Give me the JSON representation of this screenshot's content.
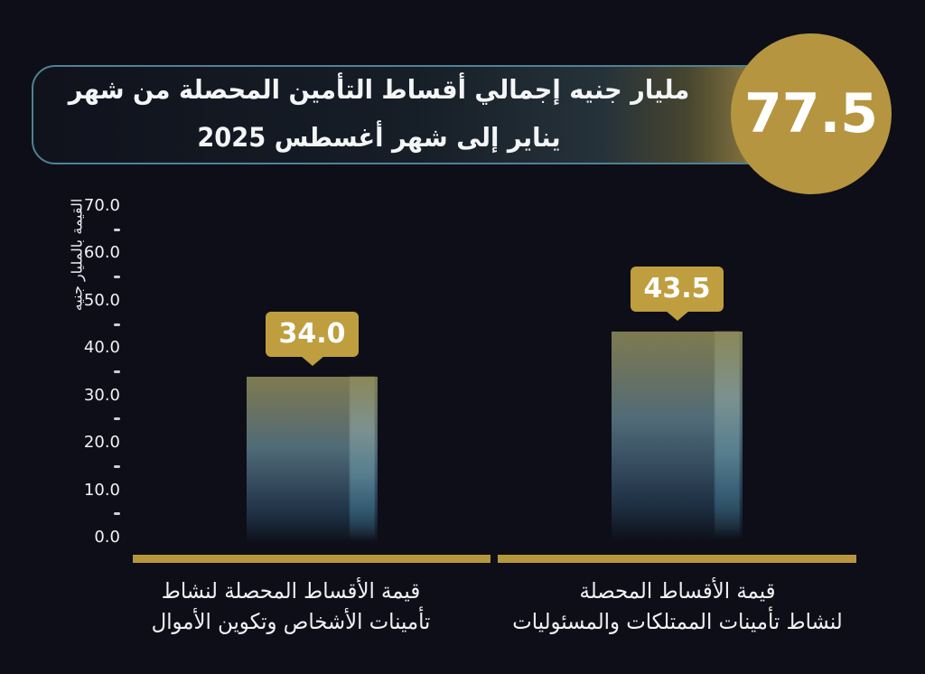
{
  "header": {
    "title_line1": "مليار جنيه إجمالي أقساط التأمين المحصلة من شهر",
    "title_line2": "يناير إلى شهر أغسطس 2025",
    "total_value": "77.5"
  },
  "colors": {
    "background": "#0d0e17",
    "gold": "#b6973e",
    "tag_gold": "#bf9e3f",
    "circle_gold": "#b5953f",
    "text": "#f2f3f5",
    "bar_top": "#7e7b51",
    "bar_mid": "#506b78",
    "bar_low": "#1c2d40",
    "strip_top": "#8b8858",
    "strip_mid": "#567e8e",
    "strip_low": "#335a70"
  },
  "chart_data": {
    "type": "bar",
    "title": "مليار جنيه إجمالي أقساط التأمين المحصلة من شهر يناير إلى شهر أغسطس 2025",
    "total": 77.5,
    "ylabel": "القيمة بالمليار جنيه",
    "ylim": [
      0,
      70
    ],
    "ytick_step": 10,
    "yticks": [
      "70.0",
      "60.0",
      "50.0",
      "40.0",
      "30.0",
      "20.0",
      "10.0",
      "0.0"
    ],
    "grid": false,
    "legend": false,
    "categories": [
      "قيمة الأقساط المحصلة لنشاط تأمينات الأشخاص وتكوين الأموال",
      "قيمة الأقساط المحصلة لنشاط تأمينات الممتلكات والمسئوليات"
    ],
    "categories_lines": [
      [
        "قيمة الأقساط المحصلة لنشاط",
        "تأمينات الأشخاص وتكوين الأموال"
      ],
      [
        "قيمة الأقساط المحصلة",
        "لنشاط تأمينات الممتلكات والمسئوليات"
      ]
    ],
    "values": [
      34.0,
      43.5
    ],
    "value_labels": [
      "34.0",
      "43.5"
    ]
  }
}
